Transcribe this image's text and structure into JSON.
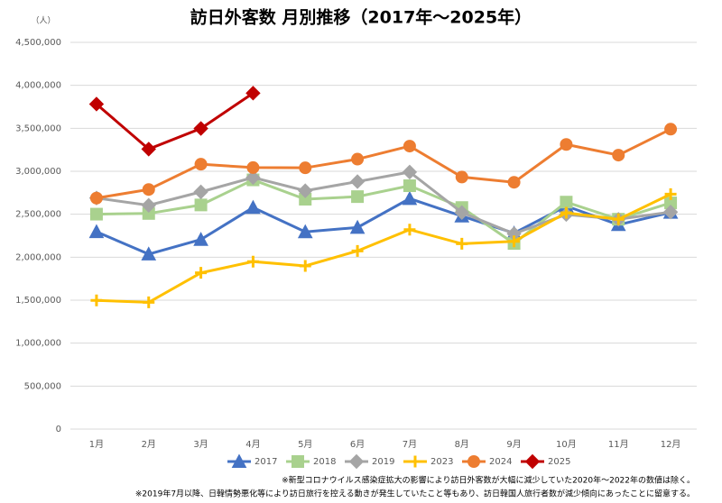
{
  "chart_data": {
    "type": "line",
    "title": "訪日外客数 月別推移（2017年～2025年）",
    "y_label": "（人）",
    "categories": [
      "1月",
      "2月",
      "3月",
      "4月",
      "5月",
      "6月",
      "7月",
      "8月",
      "9月",
      "10月",
      "11月",
      "12月"
    ],
    "series": [
      {
        "name": "2017",
        "color": "#4472c4",
        "marker": "triangle",
        "values": [
          2296000,
          2036000,
          2206000,
          2578000,
          2295000,
          2346000,
          2682000,
          2478000,
          2280000,
          2595000,
          2378000,
          2521000
        ]
      },
      {
        "name": "2018",
        "color": "#a9d18e",
        "marker": "square",
        "values": [
          2501000,
          2509000,
          2608000,
          2900000,
          2675000,
          2705000,
          2832000,
          2578000,
          2160000,
          2641000,
          2442000,
          2632000
        ]
      },
      {
        "name": "2019",
        "color": "#a5a5a5",
        "marker": "diamond",
        "values": [
          2689000,
          2604000,
          2760000,
          2927000,
          2773000,
          2880000,
          2991000,
          2520000,
          2273000,
          2497000,
          2441000,
          2526000
        ]
      },
      {
        "name": "2023",
        "color": "#ffc000",
        "marker": "plus",
        "values": [
          1497000,
          1475000,
          1818000,
          1949000,
          1899000,
          2073000,
          2321000,
          2157000,
          2184000,
          2517000,
          2441000,
          2734000
        ]
      },
      {
        "name": "2024",
        "color": "#ed7d31",
        "marker": "circle",
        "values": [
          2688000,
          2788000,
          3082000,
          3043000,
          3040000,
          3141000,
          3293000,
          2933000,
          2872000,
          3312000,
          3188000,
          3490000
        ]
      },
      {
        "name": "2025",
        "color": "#c00000",
        "marker": "diamond",
        "values": [
          3782000,
          3258000,
          3498000,
          3909000,
          null,
          null,
          null,
          null,
          null,
          null,
          null,
          null
        ]
      }
    ],
    "ylim": [
      0,
      4500000
    ],
    "yticks": [
      0,
      {
        "value": 500000,
        "label": "500,000"
      },
      {
        "value": 1000000,
        "label": "1,000,000"
      },
      {
        "value": 1500000,
        "label": "1,500,000"
      },
      {
        "value": 2000000,
        "label": "2,000,000"
      },
      {
        "value": 2500000,
        "label": "2,500,000"
      },
      {
        "value": 3000000,
        "label": "3,000,000"
      },
      {
        "value": 3500000,
        "label": "3,500,000"
      },
      {
        "value": 4000000,
        "label": "4,000,000"
      },
      {
        "value": 4500000,
        "label": "4,500,000"
      }
    ],
    "grid": true,
    "legend": "bottom",
    "notes": [
      "※新型コロナウイルス感染症拡大の影響により訪日外客数が大幅に減少していた2020年～2022年の数値は除く。",
      "※2019年7月以降、日韓情勢悪化等により訪日旅行を控える動きが発生していたこと等もあり、訪日韓国人旅行者数が減少傾向にあったことに留意する。"
    ]
  }
}
